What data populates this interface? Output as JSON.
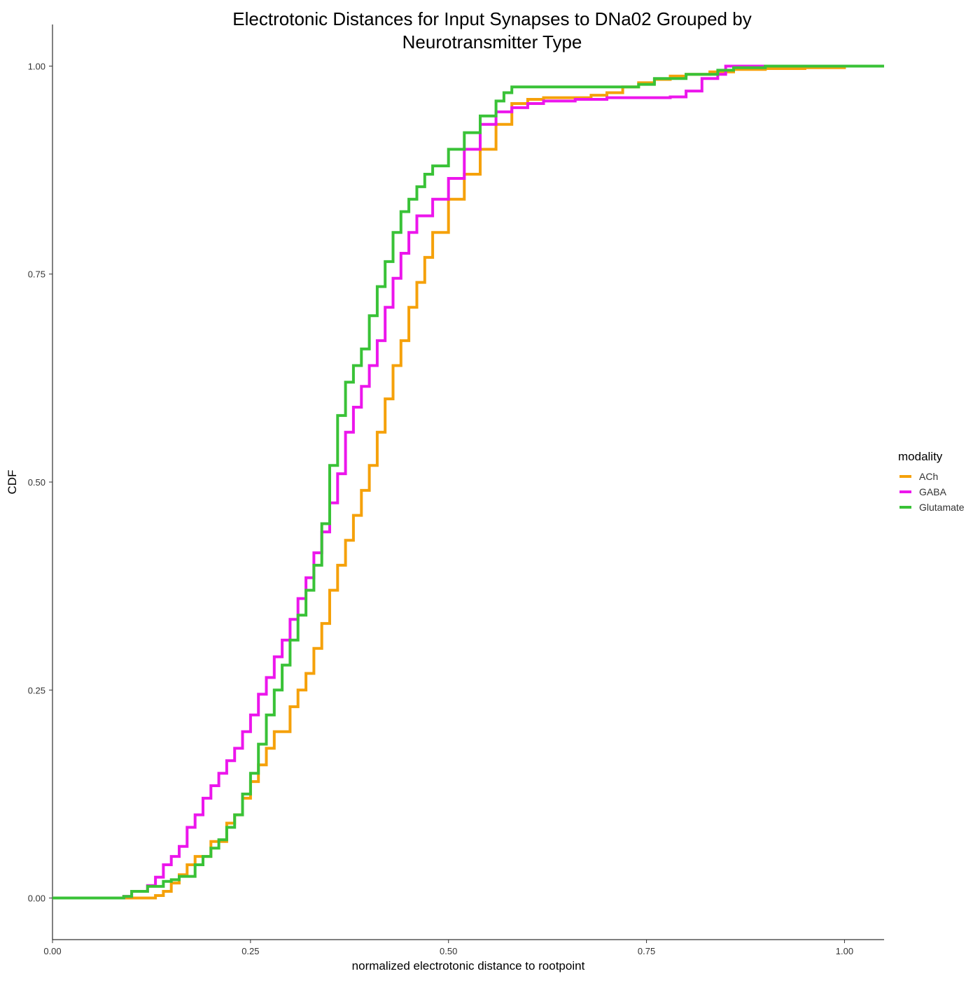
{
  "chart_data": {
    "type": "line",
    "step": true,
    "title": [
      "Electrotonic Distances for Input Synapses to DNa02 Grouped by",
      "Neurotransmitter Type"
    ],
    "xlabel": "normalized electrotonic distance to rootpoint",
    "ylabel": "CDF",
    "xlim": [
      0,
      1.05
    ],
    "ylim": [
      -0.05,
      1.05
    ],
    "xticks": [
      0.0,
      0.25,
      0.5,
      0.75,
      1.0
    ],
    "xtick_labels": [
      "0.00",
      "0.25",
      "0.50",
      "0.75",
      "1.00"
    ],
    "yticks": [
      0.0,
      0.25,
      0.5,
      0.75,
      1.0
    ],
    "ytick_labels": [
      "0.00",
      "0.25",
      "0.50",
      "0.75",
      "1.00"
    ],
    "grid": false,
    "legend": {
      "title": "modality",
      "placement": "right"
    },
    "series": [
      {
        "name": "ACh",
        "color": "#F5A10A",
        "points": [
          [
            0.0,
            0.0
          ],
          [
            0.12,
            0.0
          ],
          [
            0.13,
            0.003
          ],
          [
            0.14,
            0.008
          ],
          [
            0.15,
            0.018
          ],
          [
            0.16,
            0.028
          ],
          [
            0.17,
            0.04
          ],
          [
            0.18,
            0.05
          ],
          [
            0.2,
            0.068
          ],
          [
            0.22,
            0.09
          ],
          [
            0.23,
            0.1
          ],
          [
            0.24,
            0.12
          ],
          [
            0.25,
            0.14
          ],
          [
            0.26,
            0.16
          ],
          [
            0.27,
            0.18
          ],
          [
            0.28,
            0.2
          ],
          [
            0.3,
            0.23
          ],
          [
            0.31,
            0.25
          ],
          [
            0.32,
            0.27
          ],
          [
            0.33,
            0.3
          ],
          [
            0.34,
            0.33
          ],
          [
            0.35,
            0.37
          ],
          [
            0.36,
            0.4
          ],
          [
            0.37,
            0.43
          ],
          [
            0.38,
            0.46
          ],
          [
            0.39,
            0.49
          ],
          [
            0.4,
            0.52
          ],
          [
            0.41,
            0.56
          ],
          [
            0.42,
            0.6
          ],
          [
            0.43,
            0.64
          ],
          [
            0.44,
            0.67
          ],
          [
            0.45,
            0.71
          ],
          [
            0.46,
            0.74
          ],
          [
            0.47,
            0.77
          ],
          [
            0.48,
            0.8
          ],
          [
            0.5,
            0.84
          ],
          [
            0.52,
            0.87
          ],
          [
            0.54,
            0.9
          ],
          [
            0.56,
            0.93
          ],
          [
            0.58,
            0.955
          ],
          [
            0.6,
            0.96
          ],
          [
            0.62,
            0.962
          ],
          [
            0.66,
            0.962
          ],
          [
            0.68,
            0.965
          ],
          [
            0.7,
            0.968
          ],
          [
            0.72,
            0.975
          ],
          [
            0.74,
            0.98
          ],
          [
            0.76,
            0.984
          ],
          [
            0.78,
            0.988
          ],
          [
            0.8,
            0.99
          ],
          [
            0.83,
            0.993
          ],
          [
            0.86,
            0.996
          ],
          [
            0.9,
            0.997
          ],
          [
            0.95,
            0.998
          ],
          [
            1.0,
            1.0
          ],
          [
            1.05,
            1.0
          ]
        ]
      },
      {
        "name": "GABA",
        "color": "#EC16EC",
        "points": [
          [
            0.045,
            0.0
          ],
          [
            0.09,
            0.002
          ],
          [
            0.1,
            0.008
          ],
          [
            0.12,
            0.015
          ],
          [
            0.13,
            0.025
          ],
          [
            0.14,
            0.04
          ],
          [
            0.15,
            0.05
          ],
          [
            0.16,
            0.062
          ],
          [
            0.17,
            0.085
          ],
          [
            0.18,
            0.1
          ],
          [
            0.19,
            0.12
          ],
          [
            0.2,
            0.135
          ],
          [
            0.21,
            0.15
          ],
          [
            0.22,
            0.165
          ],
          [
            0.23,
            0.18
          ],
          [
            0.24,
            0.2
          ],
          [
            0.25,
            0.22
          ],
          [
            0.26,
            0.245
          ],
          [
            0.27,
            0.265
          ],
          [
            0.28,
            0.29
          ],
          [
            0.29,
            0.31
          ],
          [
            0.3,
            0.335
          ],
          [
            0.31,
            0.36
          ],
          [
            0.32,
            0.385
          ],
          [
            0.33,
            0.415
          ],
          [
            0.34,
            0.44
          ],
          [
            0.35,
            0.475
          ],
          [
            0.36,
            0.51
          ],
          [
            0.37,
            0.56
          ],
          [
            0.38,
            0.59
          ],
          [
            0.39,
            0.615
          ],
          [
            0.4,
            0.64
          ],
          [
            0.41,
            0.67
          ],
          [
            0.42,
            0.71
          ],
          [
            0.43,
            0.745
          ],
          [
            0.44,
            0.775
          ],
          [
            0.45,
            0.8
          ],
          [
            0.46,
            0.82
          ],
          [
            0.48,
            0.84
          ],
          [
            0.5,
            0.865
          ],
          [
            0.52,
            0.9
          ],
          [
            0.54,
            0.93
          ],
          [
            0.56,
            0.945
          ],
          [
            0.58,
            0.95
          ],
          [
            0.6,
            0.955
          ],
          [
            0.62,
            0.958
          ],
          [
            0.66,
            0.96
          ],
          [
            0.7,
            0.962
          ],
          [
            0.75,
            0.962
          ],
          [
            0.78,
            0.963
          ],
          [
            0.8,
            0.97
          ],
          [
            0.82,
            0.985
          ],
          [
            0.84,
            0.99
          ],
          [
            0.85,
            1.0
          ],
          [
            0.95,
            1.0
          ]
        ]
      },
      {
        "name": "Glutamate",
        "color": "#39C237",
        "points": [
          [
            0.0,
            0.0
          ],
          [
            0.09,
            0.002
          ],
          [
            0.1,
            0.008
          ],
          [
            0.12,
            0.014
          ],
          [
            0.14,
            0.02
          ],
          [
            0.15,
            0.022
          ],
          [
            0.16,
            0.026
          ],
          [
            0.18,
            0.04
          ],
          [
            0.19,
            0.05
          ],
          [
            0.2,
            0.06
          ],
          [
            0.21,
            0.07
          ],
          [
            0.22,
            0.085
          ],
          [
            0.23,
            0.1
          ],
          [
            0.24,
            0.125
          ],
          [
            0.25,
            0.15
          ],
          [
            0.26,
            0.185
          ],
          [
            0.27,
            0.22
          ],
          [
            0.28,
            0.25
          ],
          [
            0.29,
            0.28
          ],
          [
            0.3,
            0.31
          ],
          [
            0.31,
            0.34
          ],
          [
            0.32,
            0.37
          ],
          [
            0.33,
            0.4
          ],
          [
            0.34,
            0.45
          ],
          [
            0.35,
            0.52
          ],
          [
            0.36,
            0.58
          ],
          [
            0.37,
            0.62
          ],
          [
            0.38,
            0.64
          ],
          [
            0.39,
            0.66
          ],
          [
            0.4,
            0.7
          ],
          [
            0.41,
            0.735
          ],
          [
            0.42,
            0.765
          ],
          [
            0.43,
            0.8
          ],
          [
            0.44,
            0.825
          ],
          [
            0.45,
            0.84
          ],
          [
            0.46,
            0.855
          ],
          [
            0.47,
            0.87
          ],
          [
            0.48,
            0.88
          ],
          [
            0.5,
            0.9
          ],
          [
            0.52,
            0.92
          ],
          [
            0.54,
            0.94
          ],
          [
            0.56,
            0.958
          ],
          [
            0.57,
            0.968
          ],
          [
            0.58,
            0.975
          ],
          [
            0.6,
            0.975
          ],
          [
            0.72,
            0.975
          ],
          [
            0.74,
            0.978
          ],
          [
            0.76,
            0.985
          ],
          [
            0.8,
            0.99
          ],
          [
            0.84,
            0.995
          ],
          [
            0.86,
            0.998
          ],
          [
            0.9,
            1.0
          ],
          [
            1.05,
            1.0
          ]
        ]
      }
    ]
  }
}
